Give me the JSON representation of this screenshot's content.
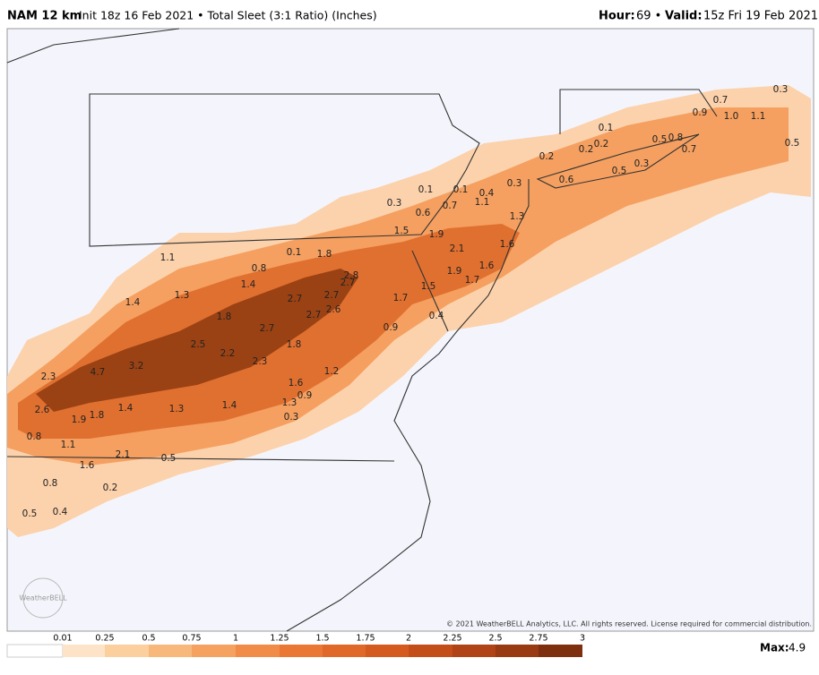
{
  "header": {
    "model": "NAM 12 km",
    "description": "Init 18z 16 Feb 2021 • Total Sleet (3:1 Ratio) (Inches)",
    "hour_label": "Hour:",
    "hour_value": "69 •",
    "valid_label": "Valid:",
    "valid_value": "15z Fri 19 Feb 2021"
  },
  "map": {
    "labels": [
      "0.1",
      "1.8",
      "1.1",
      "0.8",
      "1.3",
      "1.4",
      "1.4",
      "2.8",
      "2.7",
      "2.7",
      "2.7",
      "2.6",
      "2.7",
      "1.8",
      "2.7",
      "1.8",
      "2.5",
      "2.2",
      "2.3",
      "3.2",
      "4.7",
      "2.3",
      "1.6",
      "1.2",
      "0.9",
      "1.3",
      "1.4",
      "1.3",
      "1.4",
      "2.6",
      "1.9",
      "1.8",
      "0.3",
      "0.8",
      "1.1",
      "2.1",
      "0.5",
      "1.6",
      "0.8",
      "0.2",
      "0.5",
      "0.4",
      "1.7",
      "1.5",
      "0.4",
      "0.9",
      "1.9",
      "2.1",
      "1.9",
      "1.5",
      "1.7",
      "1.6",
      "1.6",
      "1.3",
      "0.6",
      "0.3",
      "0.1",
      "0.1",
      "0.7",
      "1.1",
      "0.4",
      "0.3",
      "0.1",
      "0.2",
      "0.2",
      "0.2",
      "0.6",
      "0.5",
      "0.3",
      "0.5",
      "0.8",
      "0.7",
      "0.7",
      "0.9",
      "1.0",
      "1.1",
      "0.3",
      "0.5"
    ],
    "copyright": "© 2021 WeatherBELL Analytics, LLC. All rights reserved. License required for commercial distribution.",
    "watermark": "WeatherBELL"
  },
  "colorbar": {
    "labels": [
      "0.01",
      "0.25",
      "0.5",
      "0.75",
      "1",
      "1.25",
      "1.5",
      "1.75",
      "2",
      "2.25",
      "2.5",
      "2.75",
      "3"
    ]
  },
  "max": {
    "label": "Max:",
    "value": "4.9"
  }
}
